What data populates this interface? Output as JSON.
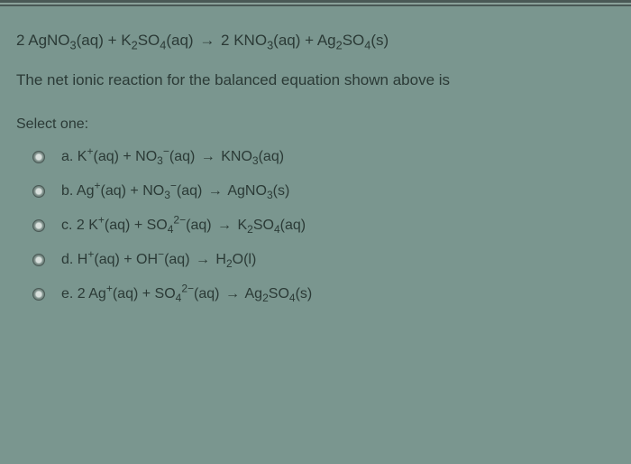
{
  "equation": {
    "html": "2 AgNO<sub>3</sub>(aq) + K<sub>2</sub>SO<sub>4</sub>(aq) <span class='arrow'>→</span> 2 KNO<sub>3</sub>(aq) + Ag<sub>2</sub>SO<sub>4</sub>(s)"
  },
  "question": "The net ionic reaction for the balanced equation shown above is",
  "select_label": "Select one:",
  "options": [
    {
      "letter": "a",
      "html": "a. K<sup>+</sup>(aq) + NO<sub>3</sub><sup>−</sup>(aq) <span class='arrow'>→</span> KNO<sub>3</sub>(aq)"
    },
    {
      "letter": "b",
      "html": "b. Ag<sup>+</sup>(aq) + NO<sub>3</sub><sup>−</sup>(aq) <span class='arrow'>→</span> AgNO<sub>3</sub>(s)"
    },
    {
      "letter": "c",
      "html": "c. 2 K<sup>+</sup>(aq) + SO<sub>4</sub><sup>2−</sup>(aq) <span class='arrow'>→</span> K<sub>2</sub>SO<sub>4</sub>(aq)"
    },
    {
      "letter": "d",
      "html": "d. H<sup>+</sup>(aq) + OH<sup>−</sup>(aq) <span class='arrow'>→</span> H<sub>2</sub>O(l)"
    },
    {
      "letter": "e",
      "html": "e. 2 Ag<sup>+</sup>(aq) + SO<sub>4</sub><sup>2−</sup>(aq) <span class='arrow'>→</span> Ag<sub>2</sub>SO<sub>4</sub>(s)"
    }
  ],
  "colors": {
    "background": "#7a968f",
    "text": "#2b3a36",
    "bar_dark": "#4a5956",
    "bar_light": "#8aa19a"
  }
}
